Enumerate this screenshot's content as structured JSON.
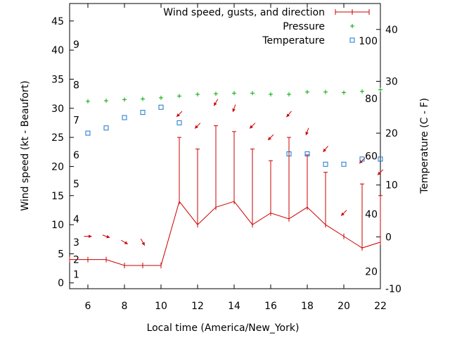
{
  "chart_data": {
    "type": "line",
    "title": "",
    "xlabel": "Local time (America/New_York)",
    "ylabel_left": "Wind speed (kt - Beaufort)",
    "ylabel_right": "Temperature (C - F)",
    "xlim": [
      5,
      22
    ],
    "ylim_left": [
      -1,
      48
    ],
    "ylim_right": [
      -10,
      45
    ],
    "x_ticks": [
      6,
      8,
      10,
      12,
      14,
      16,
      18,
      20,
      22
    ],
    "y_ticks_left": [
      0,
      5,
      10,
      15,
      20,
      25,
      30,
      35,
      40,
      45
    ],
    "y_ticks_right": [
      -10,
      0,
      10,
      20,
      30,
      40
    ],
    "beaufort_labels": [
      {
        "label": "1",
        "knots": 1.5
      },
      {
        "label": "2",
        "knots": 4.0
      },
      {
        "label": "3",
        "knots": 7.0
      },
      {
        "label": "4",
        "knots": 11.0
      },
      {
        "label": "5",
        "knots": 17.0
      },
      {
        "label": "6",
        "knots": 22.0
      },
      {
        "label": "7",
        "knots": 28.0
      },
      {
        "label": "8",
        "knots": 34.0
      },
      {
        "label": "9",
        "knots": 41.0
      }
    ],
    "fahrenheit_labels": [
      {
        "label": "20",
        "celsius": -6.7
      },
      {
        "label": "40",
        "celsius": 4.4
      },
      {
        "label": "60",
        "celsius": 15.6
      },
      {
        "label": "80",
        "celsius": 26.7
      },
      {
        "label": "100",
        "celsius": 37.8
      }
    ],
    "legend": {
      "position": "top-right"
    },
    "grid": false,
    "colors": {
      "wind": "#cc0000",
      "pressure": "#00aa00",
      "temperature": "#1a75cc"
    },
    "series": [
      {
        "name": "Wind speed, gusts, and direction",
        "x": [
          5,
          6,
          7,
          8,
          9,
          10,
          11,
          12,
          13,
          14,
          15,
          16,
          17,
          18,
          19,
          20,
          21,
          22
        ],
        "values": [
          4,
          4,
          4,
          3,
          3,
          3,
          14,
          10,
          13,
          14,
          10,
          12,
          11,
          13,
          10,
          8,
          6,
          7
        ],
        "gust_x": [
          11,
          12,
          13,
          14,
          15,
          16,
          17,
          18,
          19,
          21,
          22
        ],
        "gust_values": [
          25,
          23,
          27,
          26,
          23,
          21,
          25,
          22,
          19,
          17,
          15
        ],
        "direction_x": [
          6,
          7,
          8,
          9,
          11,
          12,
          13,
          14,
          15,
          16,
          17,
          18,
          19,
          20,
          21,
          22
        ],
        "direction_y": [
          8,
          8,
          7,
          7,
          29,
          27,
          31,
          30,
          27,
          25,
          29,
          26,
          23,
          12,
          21,
          19
        ],
        "direction_deg": [
          270,
          290,
          300,
          330,
          45,
          45,
          30,
          20,
          45,
          45,
          40,
          20,
          40,
          45,
          45,
          45
        ]
      },
      {
        "name": "Pressure",
        "x": [
          6,
          7,
          8,
          9,
          10,
          11,
          12,
          13,
          14,
          15,
          16,
          17,
          18,
          19,
          20,
          21,
          22
        ],
        "values": [
          31.2,
          31.3,
          31.5,
          31.6,
          31.8,
          32.1,
          32.4,
          32.5,
          32.6,
          32.6,
          32.4,
          32.4,
          32.8,
          32.8,
          32.7,
          32.9,
          33.2
        ]
      },
      {
        "name": "Temperature",
        "x": [
          6,
          7,
          8,
          9,
          10,
          11,
          17,
          18,
          19,
          20,
          21,
          22
        ],
        "values": [
          20,
          21,
          23,
          24,
          25,
          22,
          16,
          16,
          14,
          14,
          15,
          15
        ]
      }
    ]
  }
}
